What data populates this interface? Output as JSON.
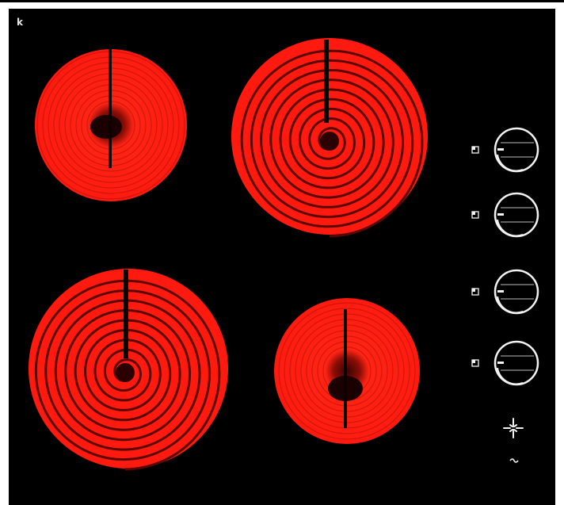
{
  "appliance": {
    "type": "ceramic-cooktop",
    "glass_color": "#000000",
    "burner_color": "#ff1f12",
    "burner_dark": "#7a0a05",
    "control_color": "#f2f2f2"
  },
  "brand_mark": "k",
  "zones": [
    {
      "id": "front-left",
      "style": "radiant-disc"
    },
    {
      "id": "front-right",
      "style": "coil-spiral"
    },
    {
      "id": "rear-left",
      "style": "coil-spiral"
    },
    {
      "id": "rear-right",
      "style": "radiant-disc"
    }
  ],
  "knobs": [
    {
      "id": "knob-1",
      "indicator_icon": "zone-indicator-icon"
    },
    {
      "id": "knob-2",
      "indicator_icon": "zone-indicator-icon"
    },
    {
      "id": "knob-3",
      "indicator_icon": "zone-indicator-icon"
    },
    {
      "id": "knob-4",
      "indicator_icon": "zone-indicator-icon"
    }
  ],
  "status_icons": [
    "residual-heat-icon",
    "power-indicator-icon"
  ]
}
